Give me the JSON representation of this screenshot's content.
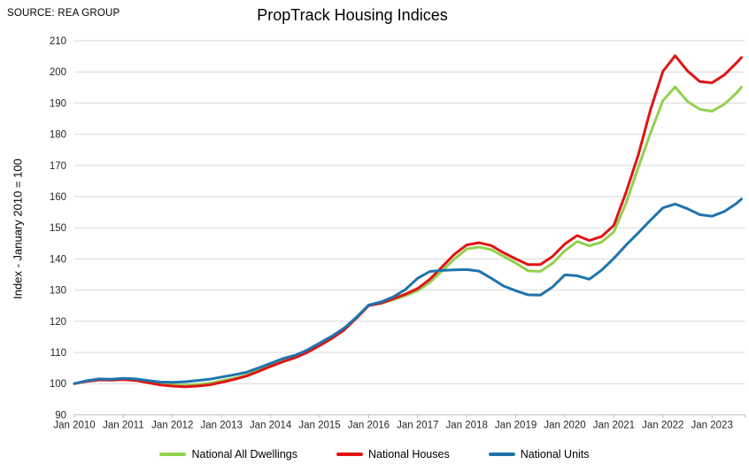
{
  "source_label": "SOURCE: REA GROUP",
  "chart_data": {
    "type": "line",
    "title": "PropTrack Housing Indices",
    "xlabel": "",
    "ylabel": "Index - January 2010 = 100",
    "ylim": [
      90,
      210
    ],
    "y_ticks": [
      90,
      100,
      110,
      120,
      130,
      140,
      150,
      160,
      170,
      180,
      190,
      200,
      210
    ],
    "x_tick_labels": [
      "Jan 2010",
      "Jan 2011",
      "Jan 2012",
      "Jan 2013",
      "Jan 2014",
      "Jan 2015",
      "Jan 2016",
      "Jan 2017",
      "Jan 2018",
      "Jan 2019",
      "Jan 2020",
      "Jan 2021",
      "Jan 2022",
      "Jan 2023"
    ],
    "grid": "horizontal",
    "legend_position": "bottom",
    "x": [
      2010,
      2010.25,
      2010.5,
      2010.75,
      2011,
      2011.25,
      2011.5,
      2011.75,
      2012,
      2012.25,
      2012.5,
      2012.75,
      2013,
      2013.25,
      2013.5,
      2013.75,
      2014,
      2014.25,
      2014.5,
      2014.75,
      2015,
      2015.25,
      2015.5,
      2015.75,
      2016,
      2016.25,
      2016.5,
      2016.75,
      2017,
      2017.25,
      2017.5,
      2017.75,
      2018,
      2018.25,
      2018.5,
      2018.75,
      2019,
      2019.25,
      2019.5,
      2019.75,
      2020,
      2020.25,
      2020.5,
      2020.75,
      2021,
      2021.25,
      2021.5,
      2021.75,
      2022,
      2022.25,
      2022.5,
      2022.75,
      2023,
      2023.25,
      2023.5,
      2023.6
    ],
    "series": [
      {
        "name": "National All Dwellings",
        "color": "#92d050",
        "values": [
          100,
          100.8,
          101.3,
          101.2,
          101.4,
          101.1,
          100.5,
          99.9,
          99.6,
          99.5,
          99.7,
          100.1,
          100.9,
          101.7,
          102.7,
          104.2,
          105.8,
          107.3,
          108.5,
          110.2,
          112.4,
          114.7,
          117.3,
          121.1,
          125.1,
          125.7,
          126.9,
          128.2,
          129.8,
          132.5,
          136.2,
          140,
          143.2,
          143.8,
          143,
          140.8,
          138.7,
          136.2,
          136,
          138.6,
          142.6,
          145.6,
          144.2,
          145.4,
          148.7,
          158,
          169.5,
          180.5,
          190.8,
          195.2,
          190.5,
          188,
          187.4,
          189.6,
          193.2,
          195.1
        ]
      },
      {
        "name": "National Houses",
        "color": "#e01414",
        "values": [
          100,
          100.7,
          101.2,
          101.1,
          101.3,
          101,
          100.3,
          99.6,
          99.2,
          99,
          99.2,
          99.6,
          100.4,
          101.3,
          102.4,
          103.9,
          105.5,
          107,
          108.3,
          110,
          112.2,
          114.5,
          117.2,
          121,
          125,
          125.8,
          127.2,
          128.7,
          130.5,
          133.5,
          137.5,
          141.5,
          144.5,
          145.2,
          144.3,
          142,
          140,
          138.2,
          138.2,
          140.8,
          144.8,
          147.5,
          145.9,
          147.2,
          150.8,
          161.5,
          173.5,
          188,
          200.2,
          205.2,
          200.3,
          196.9,
          196.5,
          199,
          202.9,
          204.6
        ]
      },
      {
        "name": "National Units",
        "color": "#1f74ad",
        "values": [
          100,
          100.9,
          101.5,
          101.4,
          101.7,
          101.5,
          101,
          100.5,
          100.4,
          100.6,
          101,
          101.4,
          102.1,
          102.8,
          103.6,
          105,
          106.5,
          108,
          109.1,
          110.8,
          113,
          115.2,
          117.8,
          121.3,
          125.2,
          126.2,
          127.8,
          130.2,
          133.8,
          136,
          136.3,
          136.5,
          136.6,
          136.1,
          133.8,
          131.3,
          129.8,
          128.5,
          128.4,
          131,
          134.9,
          134.6,
          133.5,
          136.4,
          140.2,
          144.5,
          148.4,
          152.5,
          156.4,
          157.6,
          156.1,
          154.2,
          153.7,
          155.2,
          157.8,
          159.2
        ]
      }
    ]
  }
}
